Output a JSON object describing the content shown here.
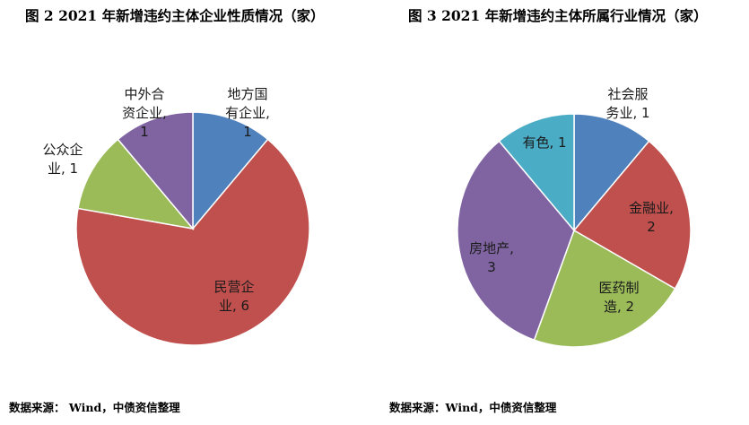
{
  "chart_data": [
    {
      "type": "pie",
      "title": "图 2 2021 年新增违约主体企业性质情况（家）",
      "source": "数据来源： Wind，中债资信整理",
      "slices": [
        {
          "name": "地方国有企业",
          "value": 1,
          "label_lines": [
            "地方国",
            "有企业,",
            "1"
          ],
          "color": "#4F81BD"
        },
        {
          "name": "民营企业",
          "value": 6,
          "label_lines": [
            "民营企",
            "业, 6"
          ],
          "color": "#C0504D"
        },
        {
          "name": "公众企业",
          "value": 1,
          "label_lines": [
            "公众企",
            "业, 1"
          ],
          "color": "#9BBB59"
        },
        {
          "name": "中外合资企业",
          "value": 1,
          "label_lines": [
            "中外合",
            "资企业,",
            "1"
          ],
          "color": "#8064A2"
        }
      ]
    },
    {
      "type": "pie",
      "title": "图 3 2021 年新增违约主体所属行业情况（家）",
      "source": "数据来源：Wind，中债资信整理",
      "slices": [
        {
          "name": "社会服务业",
          "value": 1,
          "label_lines": [
            "社会服",
            "务业, 1"
          ],
          "color": "#4F81BD"
        },
        {
          "name": "金融业",
          "value": 2,
          "label_lines": [
            "金融业,",
            "2"
          ],
          "color": "#C0504D"
        },
        {
          "name": "医药制造",
          "value": 2,
          "label_lines": [
            "医药制",
            "造, 2"
          ],
          "color": "#9BBB59"
        },
        {
          "name": "房地产",
          "value": 3,
          "label_lines": [
            "房地产,",
            "3"
          ],
          "color": "#8064A2"
        },
        {
          "name": "有色",
          "value": 1,
          "label_lines": [
            "有色, 1"
          ],
          "color": "#4BACC6"
        }
      ]
    }
  ]
}
